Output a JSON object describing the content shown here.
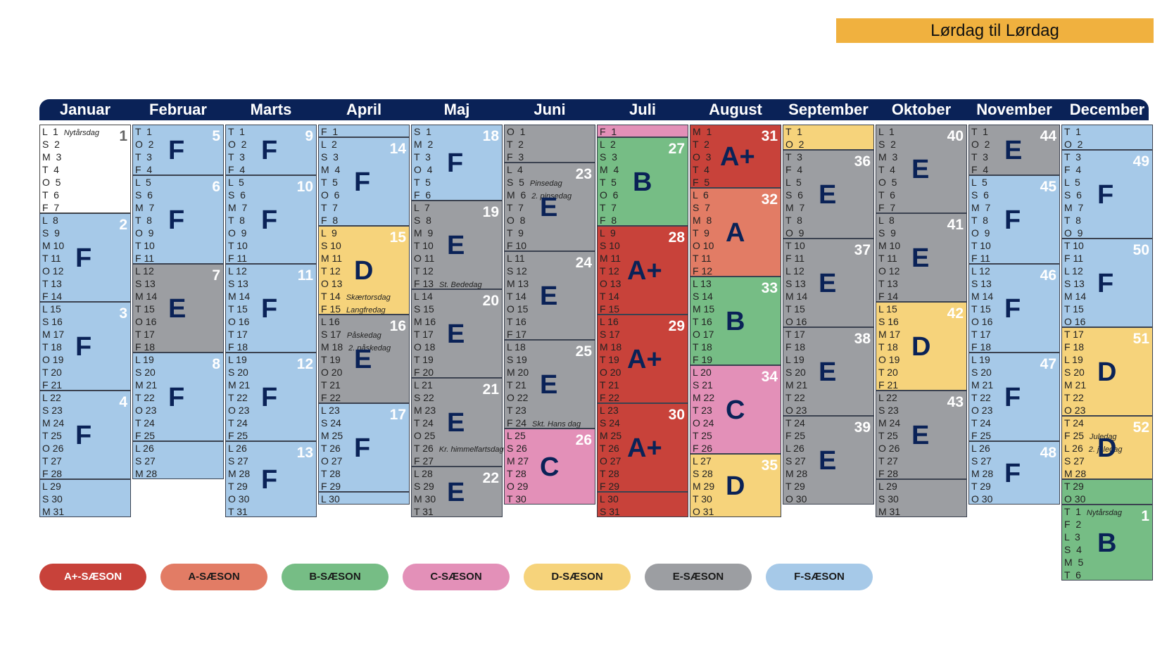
{
  "banner": "Lørdag til Lørdag",
  "colors": {
    "A+": "#c8423a",
    "A": "#e27c65",
    "B": "#76bd85",
    "C": "#e390b8",
    "D": "#f6d37b",
    "E": "#9c9ea2",
    "F": "#a6c9e8",
    "W": "#ffffff"
  },
  "months": [
    {
      "name": "Januar",
      "weekday_start": "L",
      "days": 31,
      "blocks": [
        {
          "s": "W",
          "n": 7,
          "wk": "1",
          "label": ""
        },
        {
          "s": "F",
          "n": 7,
          "wk": "2",
          "label": "F"
        },
        {
          "s": "F",
          "n": 7,
          "wk": "3",
          "label": "F"
        },
        {
          "s": "F",
          "n": 7,
          "wk": "4",
          "label": "F"
        },
        {
          "s": "F",
          "n": 3,
          "wk": "",
          "label": ""
        }
      ],
      "holidays": {
        "1": "Nytårsdag"
      }
    },
    {
      "name": "Februar",
      "weekday_start": "T",
      "days": 28,
      "blocks": [
        {
          "s": "F",
          "n": 4,
          "wk": "5",
          "label": "F"
        },
        {
          "s": "F",
          "n": 7,
          "wk": "6",
          "label": "F"
        },
        {
          "s": "E",
          "n": 7,
          "wk": "7",
          "label": "E"
        },
        {
          "s": "F",
          "n": 7,
          "wk": "8",
          "label": "F"
        },
        {
          "s": "F",
          "n": 3,
          "wk": "",
          "label": ""
        }
      ],
      "holidays": {}
    },
    {
      "name": "Marts",
      "weekday_start": "T",
      "days": 31,
      "blocks": [
        {
          "s": "F",
          "n": 4,
          "wk": "9",
          "label": "F"
        },
        {
          "s": "F",
          "n": 7,
          "wk": "10",
          "label": "F"
        },
        {
          "s": "F",
          "n": 7,
          "wk": "11",
          "label": "F"
        },
        {
          "s": "F",
          "n": 7,
          "wk": "12",
          "label": "F"
        },
        {
          "s": "F",
          "n": 6,
          "wk": "13",
          "label": "F"
        }
      ],
      "holidays": {}
    },
    {
      "name": "April",
      "weekday_start": "F",
      "days": 30,
      "blocks": [
        {
          "s": "F",
          "n": 1,
          "wk": "",
          "label": ""
        },
        {
          "s": "F",
          "n": 7,
          "wk": "14",
          "label": "F"
        },
        {
          "s": "D",
          "n": 7,
          "wk": "15",
          "label": "D"
        },
        {
          "s": "E",
          "n": 7,
          "wk": "16",
          "label": "E"
        },
        {
          "s": "F",
          "n": 7,
          "wk": "17",
          "label": "F"
        },
        {
          "s": "F",
          "n": 1,
          "wk": "",
          "label": ""
        }
      ],
      "holidays": {
        "14": "Skærtorsdag",
        "15": "Langfredag",
        "17": "Påskedag",
        "18": "2. påskedag"
      }
    },
    {
      "name": "Maj",
      "weekday_start": "S",
      "days": 31,
      "blocks": [
        {
          "s": "F",
          "n": 6,
          "wk": "18",
          "label": "F"
        },
        {
          "s": "E",
          "n": 7,
          "wk": "19",
          "label": "E"
        },
        {
          "s": "E",
          "n": 7,
          "wk": "20",
          "label": "E"
        },
        {
          "s": "E",
          "n": 7,
          "wk": "21",
          "label": "E"
        },
        {
          "s": "E",
          "n": 4,
          "wk": "22",
          "label": "E"
        }
      ],
      "holidays": {
        "13": "St. Bededag",
        "26": "Kr. himmelfartsdag"
      }
    },
    {
      "name": "Juni",
      "weekday_start": "O",
      "days": 30,
      "blocks": [
        {
          "s": "E",
          "n": 3,
          "wk": "",
          "label": ""
        },
        {
          "s": "E",
          "n": 7,
          "wk": "23",
          "label": "E"
        },
        {
          "s": "E",
          "n": 7,
          "wk": "24",
          "label": "E"
        },
        {
          "s": "E",
          "n": 7,
          "wk": "25",
          "label": "E"
        },
        {
          "s": "C",
          "n": 6,
          "wk": "26",
          "label": "C"
        }
      ],
      "holidays": {
        "5": "Pinsedag",
        "6": "2. pinsedag",
        "24": "Skt. Hans dag"
      }
    },
    {
      "name": "Juli",
      "weekday_start": "F",
      "days": 31,
      "blocks": [
        {
          "s": "C",
          "n": 1,
          "wk": "",
          "label": ""
        },
        {
          "s": "B",
          "n": 7,
          "wk": "27",
          "label": "B"
        },
        {
          "s": "A+",
          "n": 7,
          "wk": "28",
          "label": "A+"
        },
        {
          "s": "A+",
          "n": 7,
          "wk": "29",
          "label": "A+"
        },
        {
          "s": "A+",
          "n": 7,
          "wk": "30",
          "label": "A+"
        },
        {
          "s": "A+",
          "n": 2,
          "wk": "",
          "label": ""
        }
      ],
      "holidays": {}
    },
    {
      "name": "August",
      "weekday_start": "M",
      "days": 31,
      "blocks": [
        {
          "s": "A+",
          "n": 5,
          "wk": "31",
          "label": "A+"
        },
        {
          "s": "A",
          "n": 7,
          "wk": "32",
          "label": "A"
        },
        {
          "s": "B",
          "n": 7,
          "wk": "33",
          "label": "B"
        },
        {
          "s": "C",
          "n": 7,
          "wk": "34",
          "label": "C"
        },
        {
          "s": "D",
          "n": 5,
          "wk": "35",
          "label": "D"
        }
      ],
      "holidays": {}
    },
    {
      "name": "September",
      "weekday_start": "T",
      "days": 30,
      "blocks": [
        {
          "s": "D",
          "n": 2,
          "wk": "",
          "label": ""
        },
        {
          "s": "E",
          "n": 7,
          "wk": "36",
          "label": "E"
        },
        {
          "s": "E",
          "n": 7,
          "wk": "37",
          "label": "E"
        },
        {
          "s": "E",
          "n": 7,
          "wk": "38",
          "label": "E"
        },
        {
          "s": "E",
          "n": 7,
          "wk": "39",
          "label": "E"
        }
      ],
      "holidays": {}
    },
    {
      "name": "Oktober",
      "weekday_start": "L",
      "days": 31,
      "blocks": [
        {
          "s": "E",
          "n": 7,
          "wk": "40",
          "label": "E"
        },
        {
          "s": "E",
          "n": 7,
          "wk": "41",
          "label": "E"
        },
        {
          "s": "D",
          "n": 7,
          "wk": "42",
          "label": "D"
        },
        {
          "s": "E",
          "n": 7,
          "wk": "43",
          "label": "E"
        },
        {
          "s": "E",
          "n": 3,
          "wk": "",
          "label": ""
        }
      ],
      "holidays": {}
    },
    {
      "name": "November",
      "weekday_start": "T",
      "days": 30,
      "blocks": [
        {
          "s": "E",
          "n": 4,
          "wk": "44",
          "label": "E"
        },
        {
          "s": "F",
          "n": 7,
          "wk": "45",
          "label": "F"
        },
        {
          "s": "F",
          "n": 7,
          "wk": "46",
          "label": "F"
        },
        {
          "s": "F",
          "n": 7,
          "wk": "47",
          "label": "F"
        },
        {
          "s": "F",
          "n": 5,
          "wk": "48",
          "label": "F"
        }
      ],
      "holidays": {}
    },
    {
      "name": "December",
      "weekday_start": "T",
      "days": 31,
      "next_year_days": 6,
      "blocks": [
        {
          "s": "F",
          "n": 2,
          "wk": "",
          "label": ""
        },
        {
          "s": "F",
          "n": 7,
          "wk": "49",
          "label": "F"
        },
        {
          "s": "F",
          "n": 7,
          "wk": "50",
          "label": "F"
        },
        {
          "s": "D",
          "n": 7,
          "wk": "51",
          "label": "D"
        },
        {
          "s": "D",
          "n": 5,
          "wk": "52",
          "label": "D"
        },
        {
          "s": "B",
          "n": 2,
          "wk": "",
          "label": ""
        },
        {
          "s": "B",
          "n": 6,
          "wk": "1",
          "label": "B",
          "next_year": true
        }
      ],
      "holidays": {
        "25": "Juledag",
        "26": "2. juledag"
      },
      "next_year_holidays": {
        "1": "Nytårsdag"
      }
    }
  ],
  "legend": [
    {
      "label": "A+-SÆSON",
      "s": "A+"
    },
    {
      "label": "A-SÆSON",
      "s": "A"
    },
    {
      "label": "B-SÆSON",
      "s": "B"
    },
    {
      "label": "C-SÆSON",
      "s": "C"
    },
    {
      "label": "D-SÆSON",
      "s": "D"
    },
    {
      "label": "E-SÆSON",
      "s": "E"
    },
    {
      "label": "F-SÆSON",
      "s": "F"
    }
  ]
}
